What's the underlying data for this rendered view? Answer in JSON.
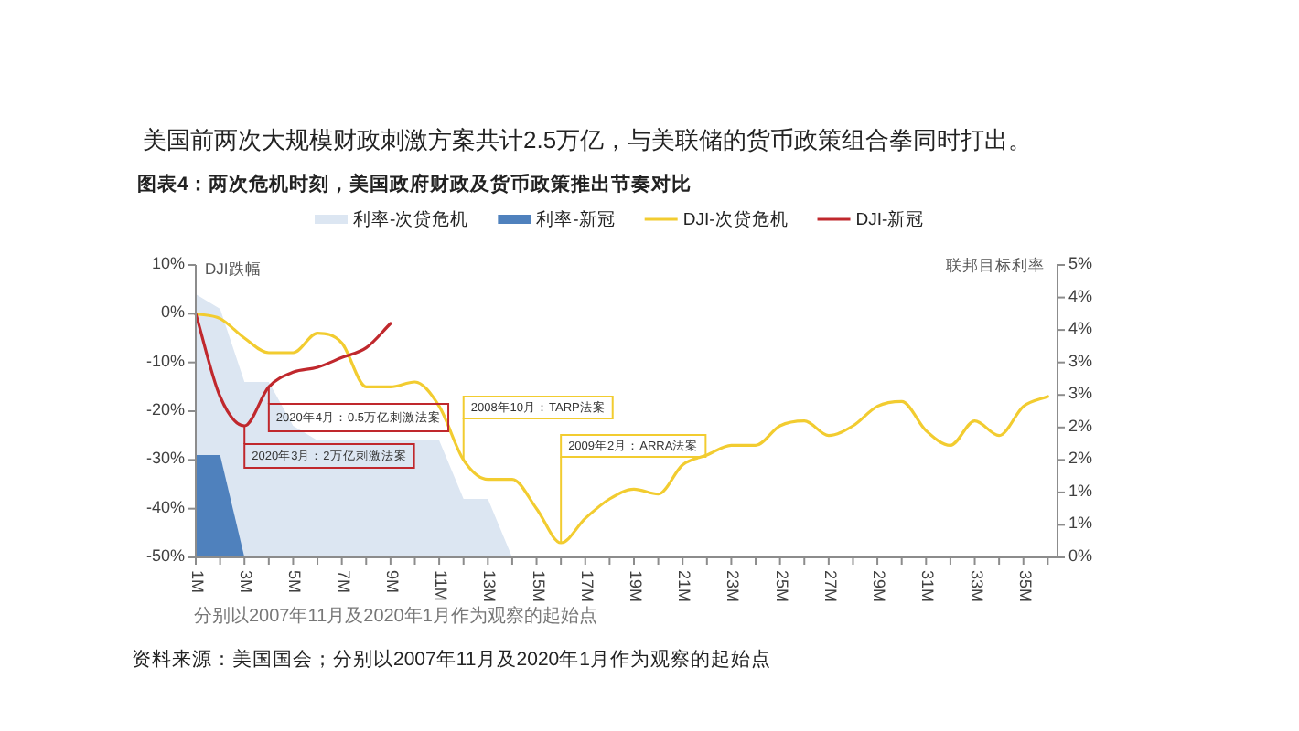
{
  "chart_data": {
    "type": "line",
    "title": "美国前两次大规模财政刺激方案共计2.5万亿，与美联储的货币政策组合拳同时打出。",
    "subtitle": "图表4：两次危机时刻，美国政府财政及货币政策推出节奏对比",
    "ylabel": "DJI跌幅",
    "y2label": "联邦目标利率",
    "legend": "top",
    "x": [
      1,
      2,
      3,
      4,
      5,
      6,
      7,
      8,
      9,
      10,
      11,
      12,
      13,
      14,
      15,
      16,
      17,
      18,
      19,
      20,
      21,
      22,
      23,
      24,
      25,
      26,
      27,
      28,
      29,
      30,
      31,
      32,
      33,
      34,
      35,
      36
    ],
    "xlim": [
      1,
      36.4
    ],
    "xticks": [
      {
        "value": 1,
        "label": "1M"
      },
      {
        "value": 2,
        "label": null
      },
      {
        "value": 3,
        "label": "3M"
      },
      {
        "value": 4,
        "label": null
      },
      {
        "value": 5,
        "label": "5M"
      },
      {
        "value": 6,
        "label": null
      },
      {
        "value": 7,
        "label": "7M"
      },
      {
        "value": 8,
        "label": null
      },
      {
        "value": 9,
        "label": "9M"
      },
      {
        "value": 10,
        "label": null
      },
      {
        "value": 11,
        "label": "11M"
      },
      {
        "value": 12,
        "label": null
      },
      {
        "value": 13,
        "label": "13M"
      },
      {
        "value": 14,
        "label": null
      },
      {
        "value": 15,
        "label": "15M"
      },
      {
        "value": 16,
        "label": null
      },
      {
        "value": 17,
        "label": "17M"
      },
      {
        "value": 18,
        "label": null
      },
      {
        "value": 19,
        "label": "19M"
      },
      {
        "value": 20,
        "label": null
      },
      {
        "value": 21,
        "label": "21M"
      },
      {
        "value": 22,
        "label": null
      },
      {
        "value": 23,
        "label": "23M"
      },
      {
        "value": 24,
        "label": null
      },
      {
        "value": 25,
        "label": "25M"
      },
      {
        "value": 26,
        "label": null
      },
      {
        "value": 27,
        "label": "27M"
      },
      {
        "value": 28,
        "label": null
      },
      {
        "value": 29,
        "label": "29M"
      },
      {
        "value": 30,
        "label": null
      },
      {
        "value": 31,
        "label": "31M"
      },
      {
        "value": 32,
        "label": null
      },
      {
        "value": 33,
        "label": "33M"
      },
      {
        "value": 34,
        "label": null
      },
      {
        "value": 35,
        "label": "35M"
      },
      {
        "value": 36,
        "label": null
      }
    ],
    "series": [
      {
        "name": "利率-次贷危机",
        "type": "area",
        "axis": "y2",
        "color": "#dce6f2",
        "values": [
          4.5,
          4.25,
          3,
          3,
          2.25,
          2,
          2,
          2,
          2,
          2,
          2,
          1,
          1,
          0,
          null,
          null,
          null,
          null,
          null,
          null,
          null,
          null,
          null,
          null,
          null,
          null,
          null,
          null,
          null,
          null,
          null,
          null,
          null,
          null,
          null,
          null
        ]
      },
      {
        "name": "利率-新冠",
        "type": "area",
        "axis": "y2",
        "color": "#4f81bd",
        "values": [
          1.75,
          1.75,
          0,
          null,
          null,
          null,
          null,
          null,
          null,
          null,
          null,
          null,
          null,
          null,
          null,
          null,
          null,
          null,
          null,
          null,
          null,
          null,
          null,
          null,
          null,
          null,
          null,
          null,
          null,
          null,
          null,
          null,
          null,
          null,
          null,
          null
        ]
      },
      {
        "name": "DJI-次贷危机",
        "type": "line",
        "color": "#f2cc30",
        "values": [
          0,
          -1,
          -5,
          -8,
          -8,
          -4,
          -6,
          -15,
          -15,
          -14,
          -19,
          -30,
          -34,
          -34,
          -40,
          -47,
          -42,
          -38,
          -36,
          -37,
          -31,
          -29,
          -27,
          -27,
          -23,
          -22,
          -25,
          -23,
          -19,
          -18,
          -24,
          -27,
          -22,
          -25,
          -19,
          -17
        ]
      },
      {
        "name": "DJI-新冠",
        "type": "line",
        "color": "#c0282d",
        "values": [
          0,
          -17,
          -23,
          -15,
          -12,
          -11,
          -9,
          -7,
          -2,
          null,
          null,
          null,
          null,
          null,
          null,
          null,
          null,
          null,
          null,
          null,
          null,
          null,
          null,
          null,
          null,
          null,
          null,
          null,
          null,
          null,
          null,
          null,
          null,
          null,
          null,
          null
        ]
      }
    ],
    "ylim": [
      -50,
      10
    ],
    "yticks": [
      {
        "value": -50,
        "label": "-50%"
      },
      {
        "value": -40,
        "label": "-40%"
      },
      {
        "value": -30,
        "label": "-30%"
      },
      {
        "value": -20,
        "label": "-20%"
      },
      {
        "value": -10,
        "label": "-10%"
      },
      {
        "value": 0,
        "label": "0%"
      },
      {
        "value": 10,
        "label": "10%"
      }
    ],
    "y2lim": [
      0,
      5
    ],
    "y2ticks": [
      {
        "value": 0,
        "label": "0%"
      },
      {
        "value": 0.556,
        "label": "1%"
      },
      {
        "value": 1.111,
        "label": "1%"
      },
      {
        "value": 1.667,
        "label": "2%"
      },
      {
        "value": 2.222,
        "label": "2%"
      },
      {
        "value": 2.778,
        "label": "3%"
      },
      {
        "value": 3.333,
        "label": "3%"
      },
      {
        "value": 3.889,
        "label": "4%"
      },
      {
        "value": 4.444,
        "label": "4%"
      },
      {
        "value": 5,
        "label": "5%"
      }
    ],
    "annotations": [
      {
        "text": "2020年3月：2万亿刺激法案",
        "x": 3,
        "y": -23
      },
      {
        "text": "2020年4月：0.5万亿刺激法案",
        "x": 4,
        "y": -15
      },
      {
        "text": "2008年10月：TARP法案",
        "x": 12,
        "y": -30
      },
      {
        "text": "2009年2月：ARRA法案",
        "x": 16,
        "y": -47
      },
      "分别以2007年11月及2020年1月作为观察的起始点",
      "资料来源：美国国会；分别以2007年11月及2020年1月作为观察的起始点"
    ]
  }
}
